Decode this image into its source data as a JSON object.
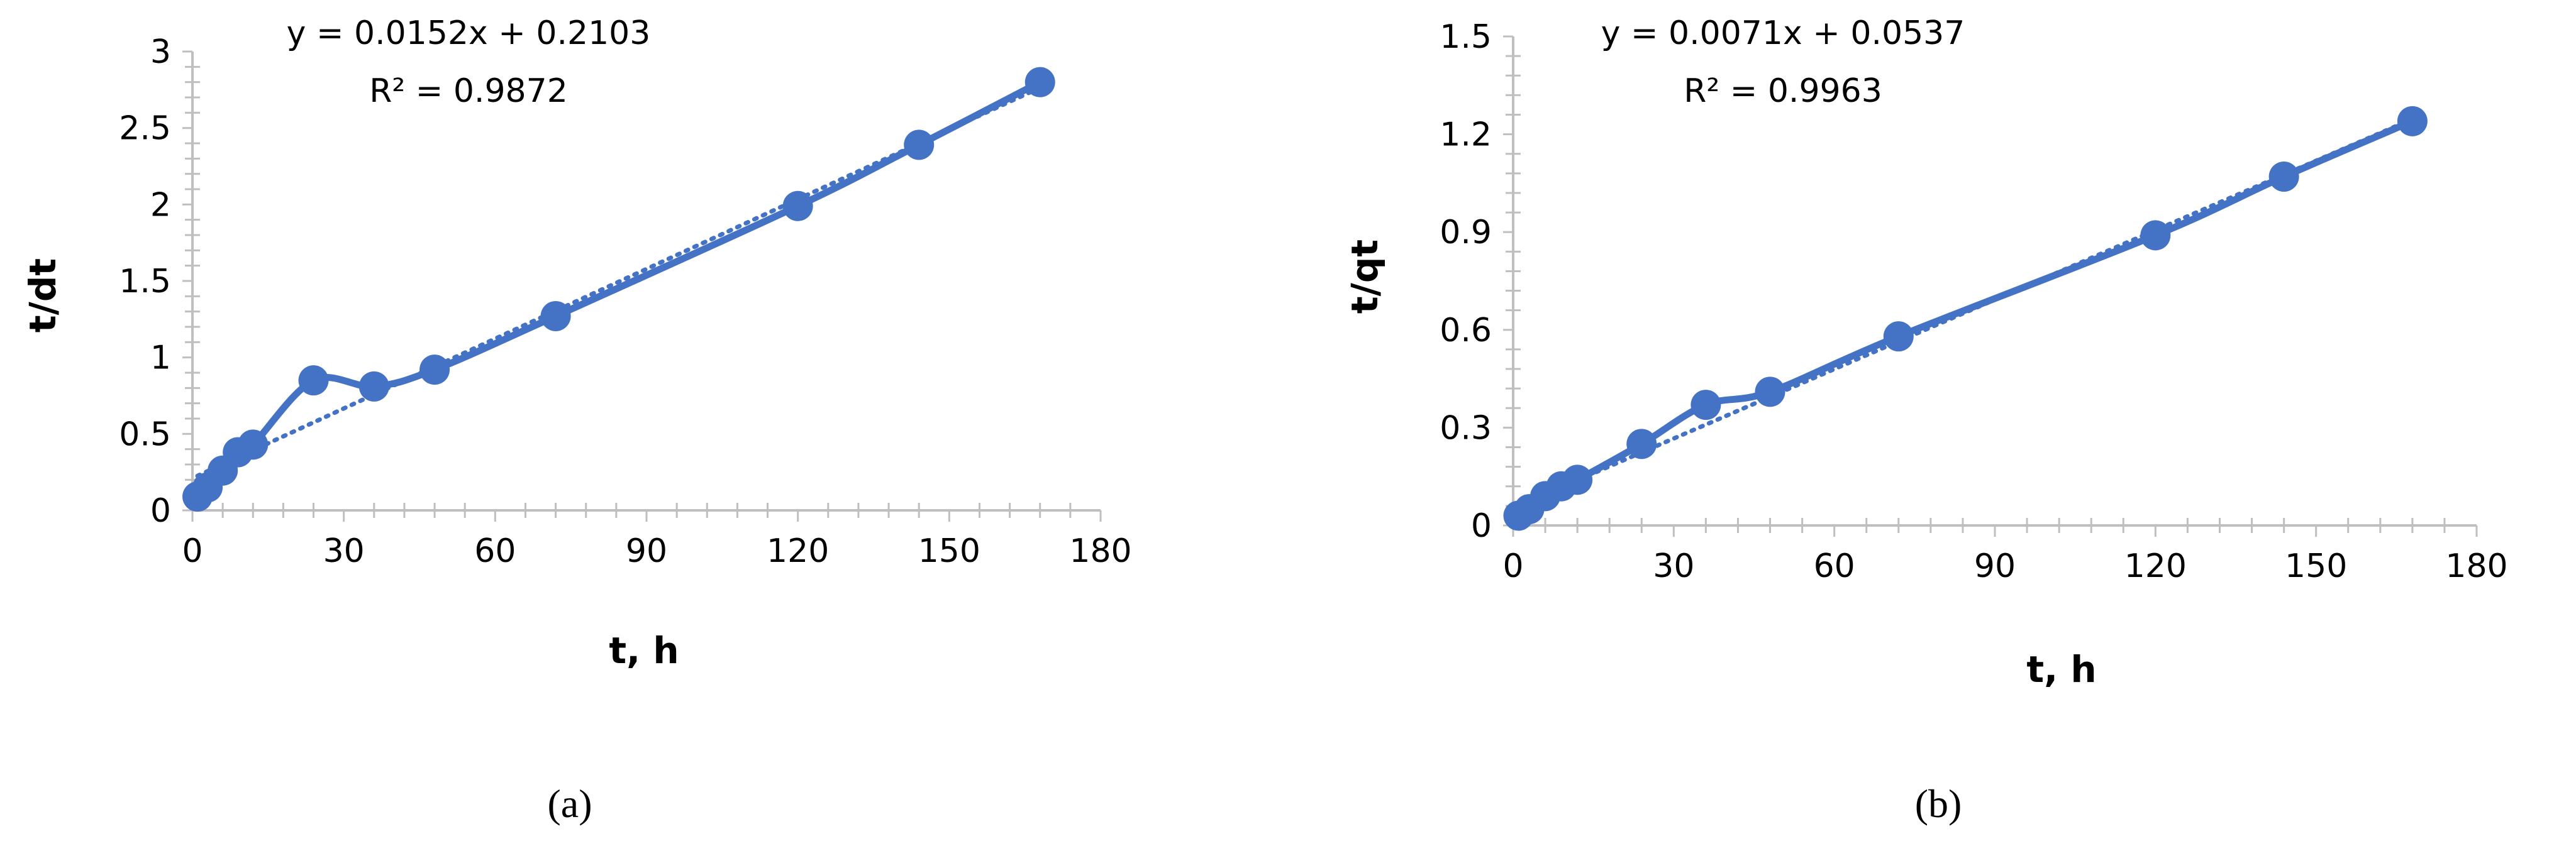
{
  "colors": {
    "series": "#4472c4",
    "axis": "#bfbfbf"
  },
  "chart_data": [
    {
      "type": "scatter",
      "panel_label": "(a)",
      "equation": "y = 0.0152x + 0.2103",
      "r_squared": "R² = 0.9872",
      "xlabel": "t, h",
      "ylabel": "t/dt",
      "xlim": [
        0,
        180
      ],
      "ylim": [
        0,
        3
      ],
      "x_ticks": [
        0,
        30,
        60,
        90,
        120,
        150,
        180
      ],
      "y_ticks": [
        0,
        0.5,
        1,
        1.5,
        2,
        2.5,
        3
      ],
      "x_tick_labels": [
        "0",
        "30",
        "60",
        "90",
        "120",
        "150",
        "180"
      ],
      "y_tick_labels": [
        "0",
        "0.5",
        "1",
        "1.5",
        "2",
        "2.5",
        "3"
      ],
      "grid": false,
      "series": [
        {
          "x": [
            1,
            3,
            6,
            9,
            12,
            24,
            36,
            48,
            72,
            120,
            144,
            168
          ],
          "y": [
            0.09,
            0.15,
            0.26,
            0.38,
            0.43,
            0.85,
            0.81,
            0.92,
            1.27,
            1.99,
            2.39,
            2.8
          ]
        }
      ],
      "trendline": {
        "type": "linear",
        "slope": 0.0152,
        "intercept": 0.2103
      }
    },
    {
      "type": "scatter",
      "panel_label": "(b)",
      "equation": "y = 0.0071x + 0.0537",
      "r_squared": "R² = 0.9963",
      "xlabel": "t, h",
      "ylabel": "t/qt",
      "xlim": [
        0,
        180
      ],
      "ylim": [
        0,
        1.5
      ],
      "x_ticks": [
        0,
        30,
        60,
        90,
        120,
        150,
        180
      ],
      "y_ticks": [
        0,
        0.3,
        0.6,
        0.9,
        1.2,
        1.5
      ],
      "x_tick_labels": [
        "0",
        "30",
        "60",
        "90",
        "120",
        "150",
        "180"
      ],
      "y_tick_labels": [
        "0",
        "0.3",
        "0.6",
        "0.9",
        "1.2",
        "1.5"
      ],
      "grid": false,
      "series": [
        {
          "x": [
            1,
            3,
            6,
            9,
            12,
            24,
            36,
            48,
            72,
            120,
            144,
            168
          ],
          "y": [
            0.03,
            0.05,
            0.09,
            0.12,
            0.14,
            0.25,
            0.37,
            0.41,
            0.58,
            0.89,
            1.07,
            1.24
          ]
        }
      ],
      "trendline": {
        "type": "linear",
        "slope": 0.0071,
        "intercept": 0.0537
      }
    }
  ]
}
